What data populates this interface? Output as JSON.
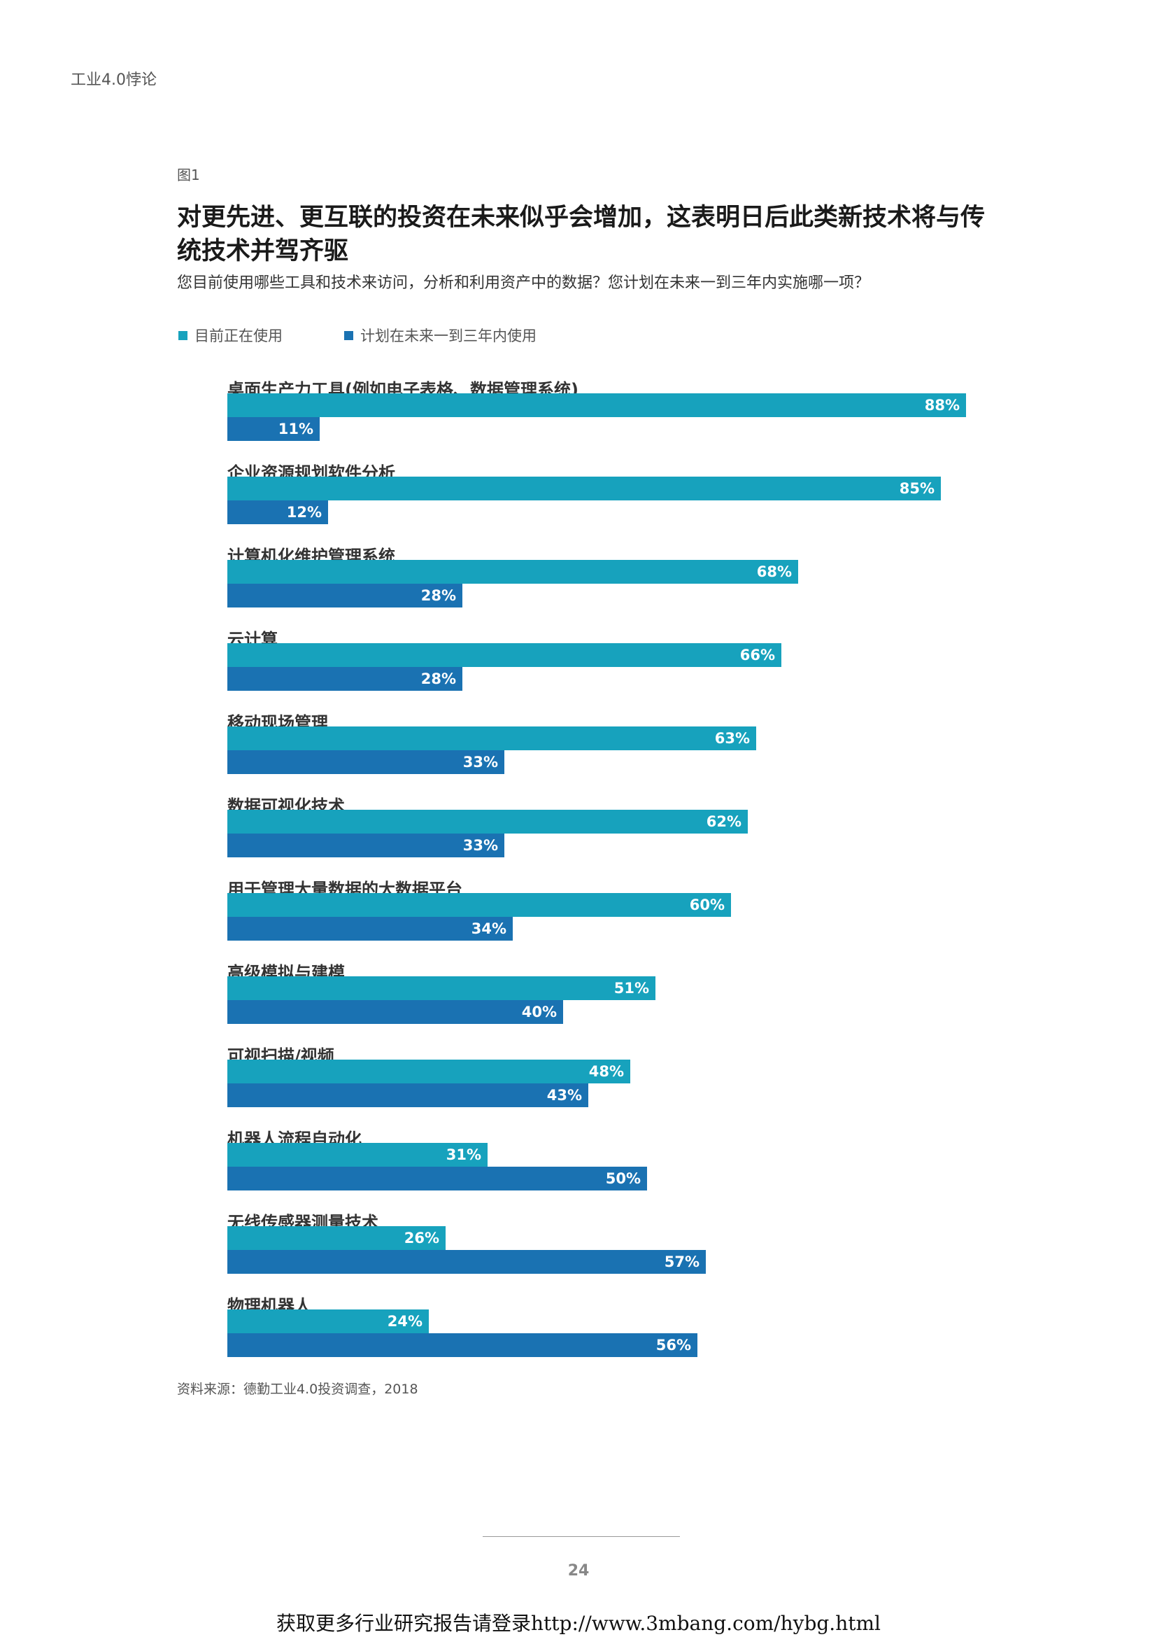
{
  "header": {
    "running_title": "工业4.0悖论"
  },
  "figure": {
    "label": "图1",
    "title": "对更先进、更互联的投资在未来似乎会增加，这表明日后此类新技术将与传统技术并驾齐驱",
    "subtitle": "您目前使用哪些工具和技术来访问，分析和利用资产中的数据？您计划在未来一到三年内实施哪一项？",
    "source": "资料来源：德勤工业4.0投资调查，2018"
  },
  "colors": {
    "current": "#17a2bd",
    "planned": "#1a72b2"
  },
  "chart_data": {
    "type": "bar",
    "orientation": "horizontal",
    "categories": [
      "桌面生产力工具(例如电子表格、数据管理系统)",
      "企业资源规划软件分析",
      "计算机化维护管理系统",
      "云计算",
      "移动现场管理",
      "数据可视化技术",
      "用于管理大量数据的大数据平台",
      "高级模拟与建模",
      "可视扫描/视频",
      "机器人流程自动化",
      "无线传感器测量技术",
      "物理机器人"
    ],
    "series": [
      {
        "name": "目前正在使用",
        "values": [
          88,
          85,
          68,
          66,
          63,
          62,
          60,
          51,
          48,
          31,
          26,
          24
        ]
      },
      {
        "name": "计划在未来一到三年内使用",
        "values": [
          11,
          12,
          28,
          28,
          33,
          33,
          34,
          40,
          43,
          50,
          57,
          56
        ]
      }
    ],
    "value_suffix": "%",
    "xlim": [
      0,
      100
    ],
    "grid": false,
    "legend": "top-left"
  },
  "footer": {
    "page_number": "24",
    "promo": "获取更多行业研究报告请登录http://www.3mbang.com/hybg.html"
  }
}
